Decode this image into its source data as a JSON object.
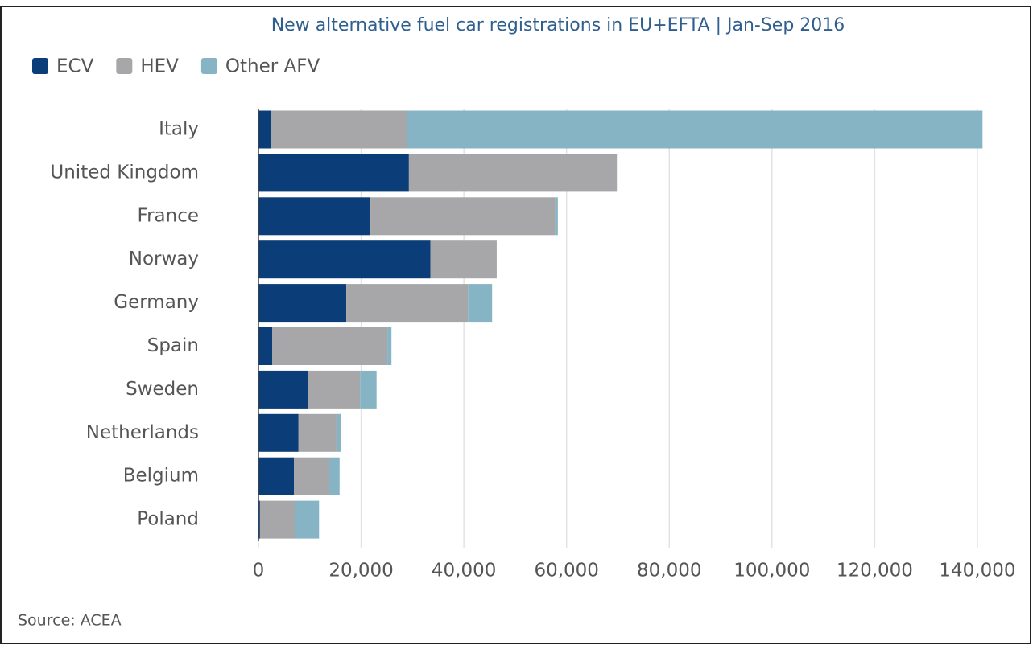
{
  "chart_data": {
    "type": "stacked_barh",
    "title": "New alternative fuel car registrations in EU+EFTA | Jan-Sep 2016",
    "source": "Source: ACEA",
    "categories": [
      "Italy",
      "United Kingdom",
      "France",
      "Norway",
      "Germany",
      "Spain",
      "Sweden",
      "Netherlands",
      "Belgium",
      "Poland"
    ],
    "series": [
      {
        "name": "ECV",
        "color": "#0b3d78",
        "values": [
          2400,
          29300,
          21800,
          33500,
          17100,
          2700,
          9700,
          7800,
          6900,
          300
        ]
      },
      {
        "name": "HEV",
        "color": "#a7a7a9",
        "values": [
          26600,
          40500,
          36000,
          12900,
          23700,
          22400,
          10100,
          7400,
          6900,
          6800
        ]
      },
      {
        "name": "Other AFV",
        "color": "#86b4c5",
        "values": [
          112000,
          0,
          500,
          0,
          4700,
          800,
          3200,
          900,
          2000,
          4700
        ]
      }
    ],
    "xlim": [
      0,
      142000
    ],
    "xticks": [
      0,
      {
        "value": 20000,
        "label": "20,000"
      },
      {
        "value": 40000,
        "label": "40,000"
      },
      {
        "value": 60000,
        "label": "60,000"
      },
      {
        "value": 80000,
        "label": "80,000"
      },
      {
        "value": 100000,
        "label": "100,000"
      },
      {
        "value": 120000,
        "label": "120,000"
      },
      {
        "value": 140000,
        "label": "140,000"
      }
    ],
    "grid": true,
    "legend": "top-left"
  }
}
